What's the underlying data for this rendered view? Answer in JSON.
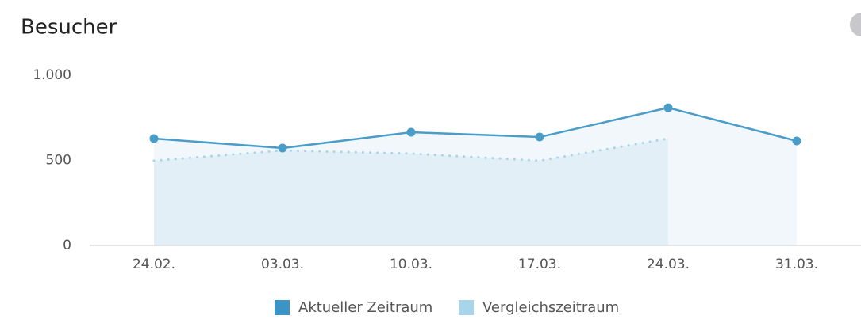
{
  "chart_data": {
    "type": "line",
    "title": "Besucher",
    "categories": [
      "24.02.",
      "03.03.",
      "10.03.",
      "17.03.",
      "24.03.",
      "31.03."
    ],
    "series": [
      {
        "name": "Aktueller Zeitraum",
        "color": "#4a9cc9",
        "line_style": "solid",
        "markers": true,
        "values": [
          628,
          572,
          665,
          637,
          809,
          614
        ]
      },
      {
        "name": "Vergleichszeitraum",
        "color": "#a8d5ea",
        "line_style": "dotted",
        "markers": false,
        "values": [
          498,
          558,
          540,
          498,
          628,
          null
        ]
      }
    ],
    "ylim": [
      0,
      1000
    ],
    "yticks": [
      0,
      500,
      {
        "value": 1000,
        "label": "1.000"
      }
    ],
    "legend": "bottom"
  }
}
